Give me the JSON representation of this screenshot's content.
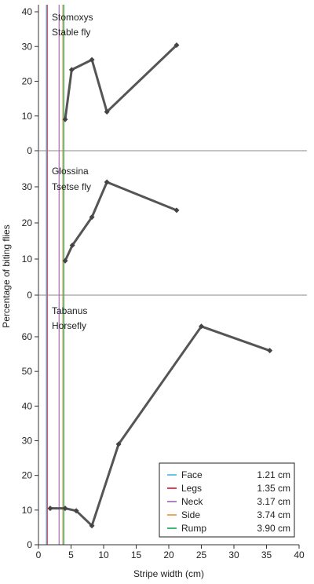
{
  "chart_data": {
    "type": "line",
    "xlabel": "Stripe width (cm)",
    "ylabel": "Percentage of biting flies",
    "x_ticks": [
      0,
      5,
      10,
      15,
      20,
      25,
      30,
      35,
      40
    ],
    "xlim": [
      0,
      40
    ],
    "line_color": "#555555",
    "panels": [
      {
        "species": "Stomoxys",
        "common_name": "Stable fly",
        "ylim": [
          0,
          40
        ],
        "y_ticks": [
          0,
          10,
          20,
          30,
          40
        ],
        "points": [
          [
            4.1,
            9
          ],
          [
            5.1,
            23.3
          ],
          [
            8.2,
            26.2
          ],
          [
            10.5,
            11.2
          ],
          [
            21.2,
            30.4
          ]
        ]
      },
      {
        "species": "Glossina",
        "common_name": "Tsetse fly",
        "ylim": [
          0,
          40
        ],
        "y_ticks": [
          0,
          10,
          20,
          30
        ],
        "points": [
          [
            4.1,
            9.5
          ],
          [
            5.2,
            13.8
          ],
          [
            8.2,
            21.6
          ],
          [
            10.5,
            31.3
          ],
          [
            21.2,
            23.5
          ]
        ]
      },
      {
        "species": "Tabanus",
        "common_name": "Horsefly",
        "ylim": [
          0,
          72
        ],
        "y_ticks": [
          0,
          10,
          20,
          30,
          40,
          50,
          60
        ],
        "points": [
          [
            1.8,
            10.5
          ],
          [
            4.1,
            10.5
          ],
          [
            5.8,
            9.8
          ],
          [
            8.2,
            5.5
          ],
          [
            12.3,
            29
          ],
          [
            25,
            63
          ],
          [
            35.5,
            56
          ]
        ]
      }
    ],
    "legend": {
      "position": "bottom-right",
      "entries": [
        {
          "label": "Face",
          "value": 1.21,
          "value_text": "1.21 cm",
          "color": "#66c7e8"
        },
        {
          "label": "Legs",
          "value": 1.35,
          "value_text": "1.35 cm",
          "color": "#e0405a"
        },
        {
          "label": "Neck",
          "value": 3.17,
          "value_text": "3.17 cm",
          "color": "#b27fc4"
        },
        {
          "label": "Side",
          "value": 3.74,
          "value_text": "3.74 cm",
          "color": "#f0a55a"
        },
        {
          "label": "Rump",
          "value": 3.9,
          "value_text": "3.90 cm",
          "color": "#3fb57a"
        }
      ]
    }
  }
}
